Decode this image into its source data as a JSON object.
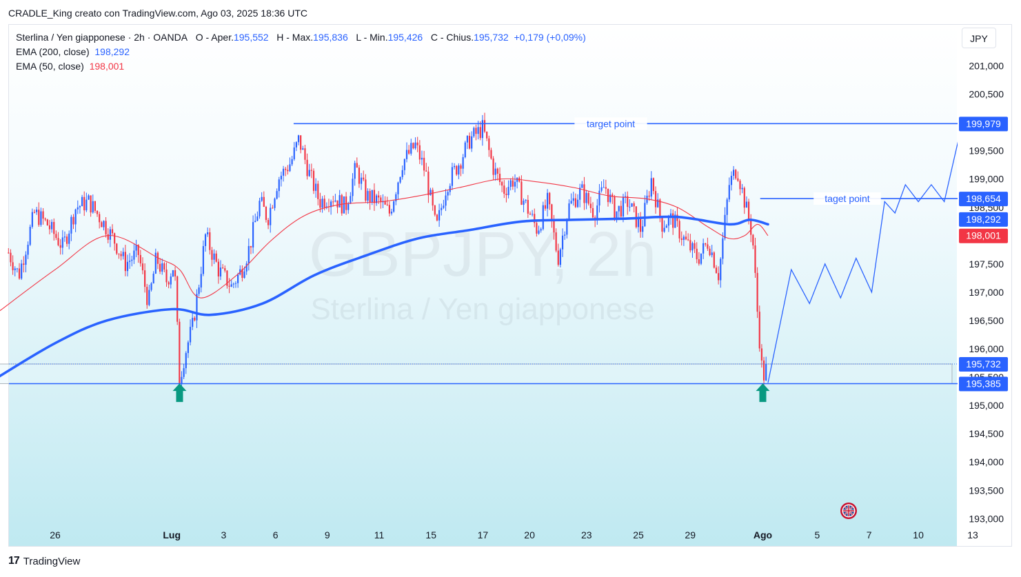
{
  "header": {
    "attribution": "CRADLE_King creato con TradingView.com, Ago 03, 2025 18:36 UTC"
  },
  "legend": {
    "symbol_line": "Sterlina / Yen giapponese · 2h · OANDA",
    "open_label": "O - Aper.",
    "open_value": "195,552",
    "high_label": "H - Max.",
    "high_value": "195,836",
    "low_label": "L - Min.",
    "low_value": "195,426",
    "close_label": "C - Chius.",
    "close_value": "195,732",
    "change": "+0,179 (+0,09%)",
    "ema200_label": "EMA (200, close)",
    "ema200_value": "198,292",
    "ema50_label": "EMA (50, close)",
    "ema50_value": "198,001"
  },
  "currency_button": "JPY",
  "watermark": {
    "symbol": "GBPJPY, 2h",
    "name": "Sterlina / Yen giapponese"
  },
  "footer": {
    "logo_glyph": "17",
    "brand": "TradingView"
  },
  "colors": {
    "up": "#2962ff",
    "down": "#f23645",
    "ema200": "#2962ff",
    "ema50": "#f23645",
    "drawing": "#2962ff",
    "arrow": "#089981",
    "zone_top": "#e6f5fb",
    "zone_bottom": "#bfe9f1"
  },
  "chart_data": {
    "type": "candlestick",
    "symbol": "GBPJPY",
    "timeframe": "2h",
    "ylim": [
      192.9,
      201.55
    ],
    "y_ticks": [
      "201,000",
      "200,500",
      "199,500",
      "199,000",
      "197,500",
      "197,000",
      "196,500",
      "196,000",
      "195,000",
      "194,500",
      "194,000",
      "193,500",
      "193,000"
    ],
    "x_ticks": [
      {
        "label": "26",
        "day": 0
      },
      {
        "label": "Lug",
        "day": 4.5
      },
      {
        "label": "3",
        "day": 6.5
      },
      {
        "label": "6",
        "day": 8.5
      },
      {
        "label": "9",
        "day": 10.5
      },
      {
        "label": "11",
        "day": 12.5
      },
      {
        "label": "15",
        "day": 14.5
      },
      {
        "label": "17",
        "day": 16.5
      },
      {
        "label": "20",
        "day": 18.3
      },
      {
        "label": "23",
        "day": 20.5
      },
      {
        "label": "25",
        "day": 22.5
      },
      {
        "label": "29",
        "day": 24.5
      },
      {
        "label": "Ago",
        "day": 27.3
      },
      {
        "label": "5",
        "day": 29.4
      },
      {
        "label": "7",
        "day": 31.4
      },
      {
        "label": "10",
        "day": 33.3
      },
      {
        "label": "13",
        "day": 35.4
      }
    ],
    "price_path": [
      [
        -1.8,
        197.7
      ],
      [
        -1.4,
        197.3
      ],
      [
        -0.8,
        198.4
      ],
      [
        -0.3,
        198.2
      ],
      [
        0.3,
        197.8
      ],
      [
        0.8,
        198.5
      ],
      [
        1.3,
        198.6
      ],
      [
        1.9,
        198.2
      ],
      [
        2.3,
        197.9
      ],
      [
        2.7,
        197.5
      ],
      [
        3.2,
        197.7
      ],
      [
        3.6,
        196.8
      ],
      [
        3.9,
        197.6
      ],
      [
        4.3,
        197.2
      ],
      [
        4.6,
        197.5
      ],
      [
        4.8,
        195.45
      ],
      [
        5.0,
        195.9
      ],
      [
        5.3,
        196.4
      ],
      [
        5.5,
        197.0
      ],
      [
        5.8,
        198.0
      ],
      [
        6.3,
        197.4
      ],
      [
        6.8,
        197.1
      ],
      [
        7.2,
        197.4
      ],
      [
        7.5,
        197.8
      ],
      [
        7.9,
        198.6
      ],
      [
        8.2,
        198.3
      ],
      [
        8.6,
        199.0
      ],
      [
        9.1,
        199.3
      ],
      [
        9.4,
        199.7
      ],
      [
        9.8,
        199.1
      ],
      [
        10.2,
        198.6
      ],
      [
        10.7,
        198.7
      ],
      [
        11.2,
        198.5
      ],
      [
        11.6,
        199.2
      ],
      [
        12.0,
        198.7
      ],
      [
        12.5,
        198.6
      ],
      [
        12.9,
        198.4
      ],
      [
        13.4,
        199.3
      ],
      [
        13.9,
        199.6
      ],
      [
        14.3,
        199.1
      ],
      [
        14.7,
        198.1
      ],
      [
        15.1,
        198.9
      ],
      [
        15.6,
        199.3
      ],
      [
        16.0,
        199.7
      ],
      [
        16.5,
        199.9
      ],
      [
        16.9,
        199.2
      ],
      [
        17.3,
        198.8
      ],
      [
        17.7,
        199.0
      ],
      [
        18.1,
        198.6
      ],
      [
        18.6,
        198.1
      ],
      [
        19.0,
        198.6
      ],
      [
        19.4,
        197.6
      ],
      [
        19.8,
        198.5
      ],
      [
        20.3,
        198.8
      ],
      [
        20.8,
        198.4
      ],
      [
        21.2,
        198.9
      ],
      [
        21.6,
        198.4
      ],
      [
        22.1,
        198.6
      ],
      [
        22.6,
        198.1
      ],
      [
        23.0,
        199.0
      ],
      [
        23.4,
        198.2
      ],
      [
        23.8,
        198.3
      ],
      [
        24.3,
        197.9
      ],
      [
        24.8,
        197.6
      ],
      [
        25.2,
        197.9
      ],
      [
        25.6,
        197.3
      ],
      [
        26.0,
        198.9
      ],
      [
        26.3,
        199.2
      ],
      [
        26.6,
        198.6
      ],
      [
        26.9,
        198.0
      ],
      [
        27.1,
        196.6
      ],
      [
        27.3,
        195.45
      ],
      [
        27.45,
        195.73
      ]
    ],
    "ema200": [
      [
        -2.2,
        195.5
      ],
      [
        0.0,
        196.1
      ],
      [
        2.0,
        196.5
      ],
      [
        4.5,
        196.7
      ],
      [
        6.0,
        196.6
      ],
      [
        8.0,
        196.8
      ],
      [
        10.0,
        197.3
      ],
      [
        12.0,
        197.65
      ],
      [
        14.0,
        197.95
      ],
      [
        16.0,
        198.1
      ],
      [
        18.0,
        198.25
      ],
      [
        20.0,
        198.28
      ],
      [
        22.0,
        198.3
      ],
      [
        24.0,
        198.33
      ],
      [
        26.0,
        198.2
      ],
      [
        26.8,
        198.28
      ],
      [
        27.5,
        198.2
      ]
    ],
    "ema50": [
      [
        -2.2,
        196.65
      ],
      [
        0.0,
        197.4
      ],
      [
        2.0,
        198.0
      ],
      [
        4.0,
        197.6
      ],
      [
        4.8,
        197.4
      ],
      [
        5.6,
        196.9
      ],
      [
        7.0,
        197.3
      ],
      [
        8.3,
        197.9
      ],
      [
        9.6,
        198.35
      ],
      [
        11.0,
        198.55
      ],
      [
        12.6,
        198.6
      ],
      [
        14.0,
        198.7
      ],
      [
        15.6,
        198.85
      ],
      [
        17.2,
        199.0
      ],
      [
        18.6,
        198.95
      ],
      [
        20.0,
        198.85
      ],
      [
        21.4,
        198.7
      ],
      [
        22.8,
        198.65
      ],
      [
        24.0,
        198.5
      ],
      [
        25.2,
        198.15
      ],
      [
        26.0,
        197.95
      ],
      [
        26.6,
        198.0
      ],
      [
        27.1,
        198.2
      ],
      [
        27.5,
        198.0
      ]
    ],
    "drawings": {
      "target_line_1": {
        "label": "target point",
        "price": 199.979,
        "from_day": 9.2,
        "to_day": 36.8
      },
      "target_line_2": {
        "label": "taget point",
        "price": 198.654,
        "from_day": 27.2,
        "to_day": 36.8
      },
      "support_line": {
        "price": 195.385,
        "from_day": -2.2,
        "to_day": 36.8
      },
      "zone": {
        "top": 195.732,
        "bottom": 195.385,
        "from_day": -2.2,
        "to_day": 34.6
      },
      "projection": [
        [
          27.5,
          195.4
        ],
        [
          28.4,
          197.4
        ],
        [
          29.1,
          196.8
        ],
        [
          29.7,
          197.5
        ],
        [
          30.3,
          196.9
        ],
        [
          30.9,
          197.6
        ],
        [
          31.5,
          197.0
        ],
        [
          32.0,
          198.6
        ],
        [
          32.4,
          198.4
        ],
        [
          32.8,
          198.9
        ],
        [
          33.3,
          198.6
        ],
        [
          33.8,
          198.9
        ],
        [
          34.3,
          198.6
        ],
        [
          35.0,
          200.0
        ]
      ],
      "buy_arrows": [
        {
          "day": 4.8,
          "price": 195.45
        },
        {
          "day": 27.3,
          "price": 195.45
        }
      ]
    },
    "price_labels": [
      {
        "text": "199,979",
        "price": 199.979,
        "color": "#2962ff",
        "style": "solid"
      },
      {
        "text": "198,654",
        "price": 198.654,
        "color": "#2962ff",
        "style": "solid"
      },
      {
        "text": "198,292",
        "price": 198.292,
        "color": "#2962ff",
        "style": "solid"
      },
      {
        "text": "198,001",
        "price": 198.001,
        "color": "#f23645",
        "style": "solid"
      },
      {
        "text": "195,732",
        "price": 195.732,
        "color": "#2962ff",
        "style": "solid"
      },
      {
        "text": "195,385",
        "price": 195.385,
        "color": "#2962ff",
        "style": "solid"
      }
    ],
    "current_price": 195.732
  }
}
